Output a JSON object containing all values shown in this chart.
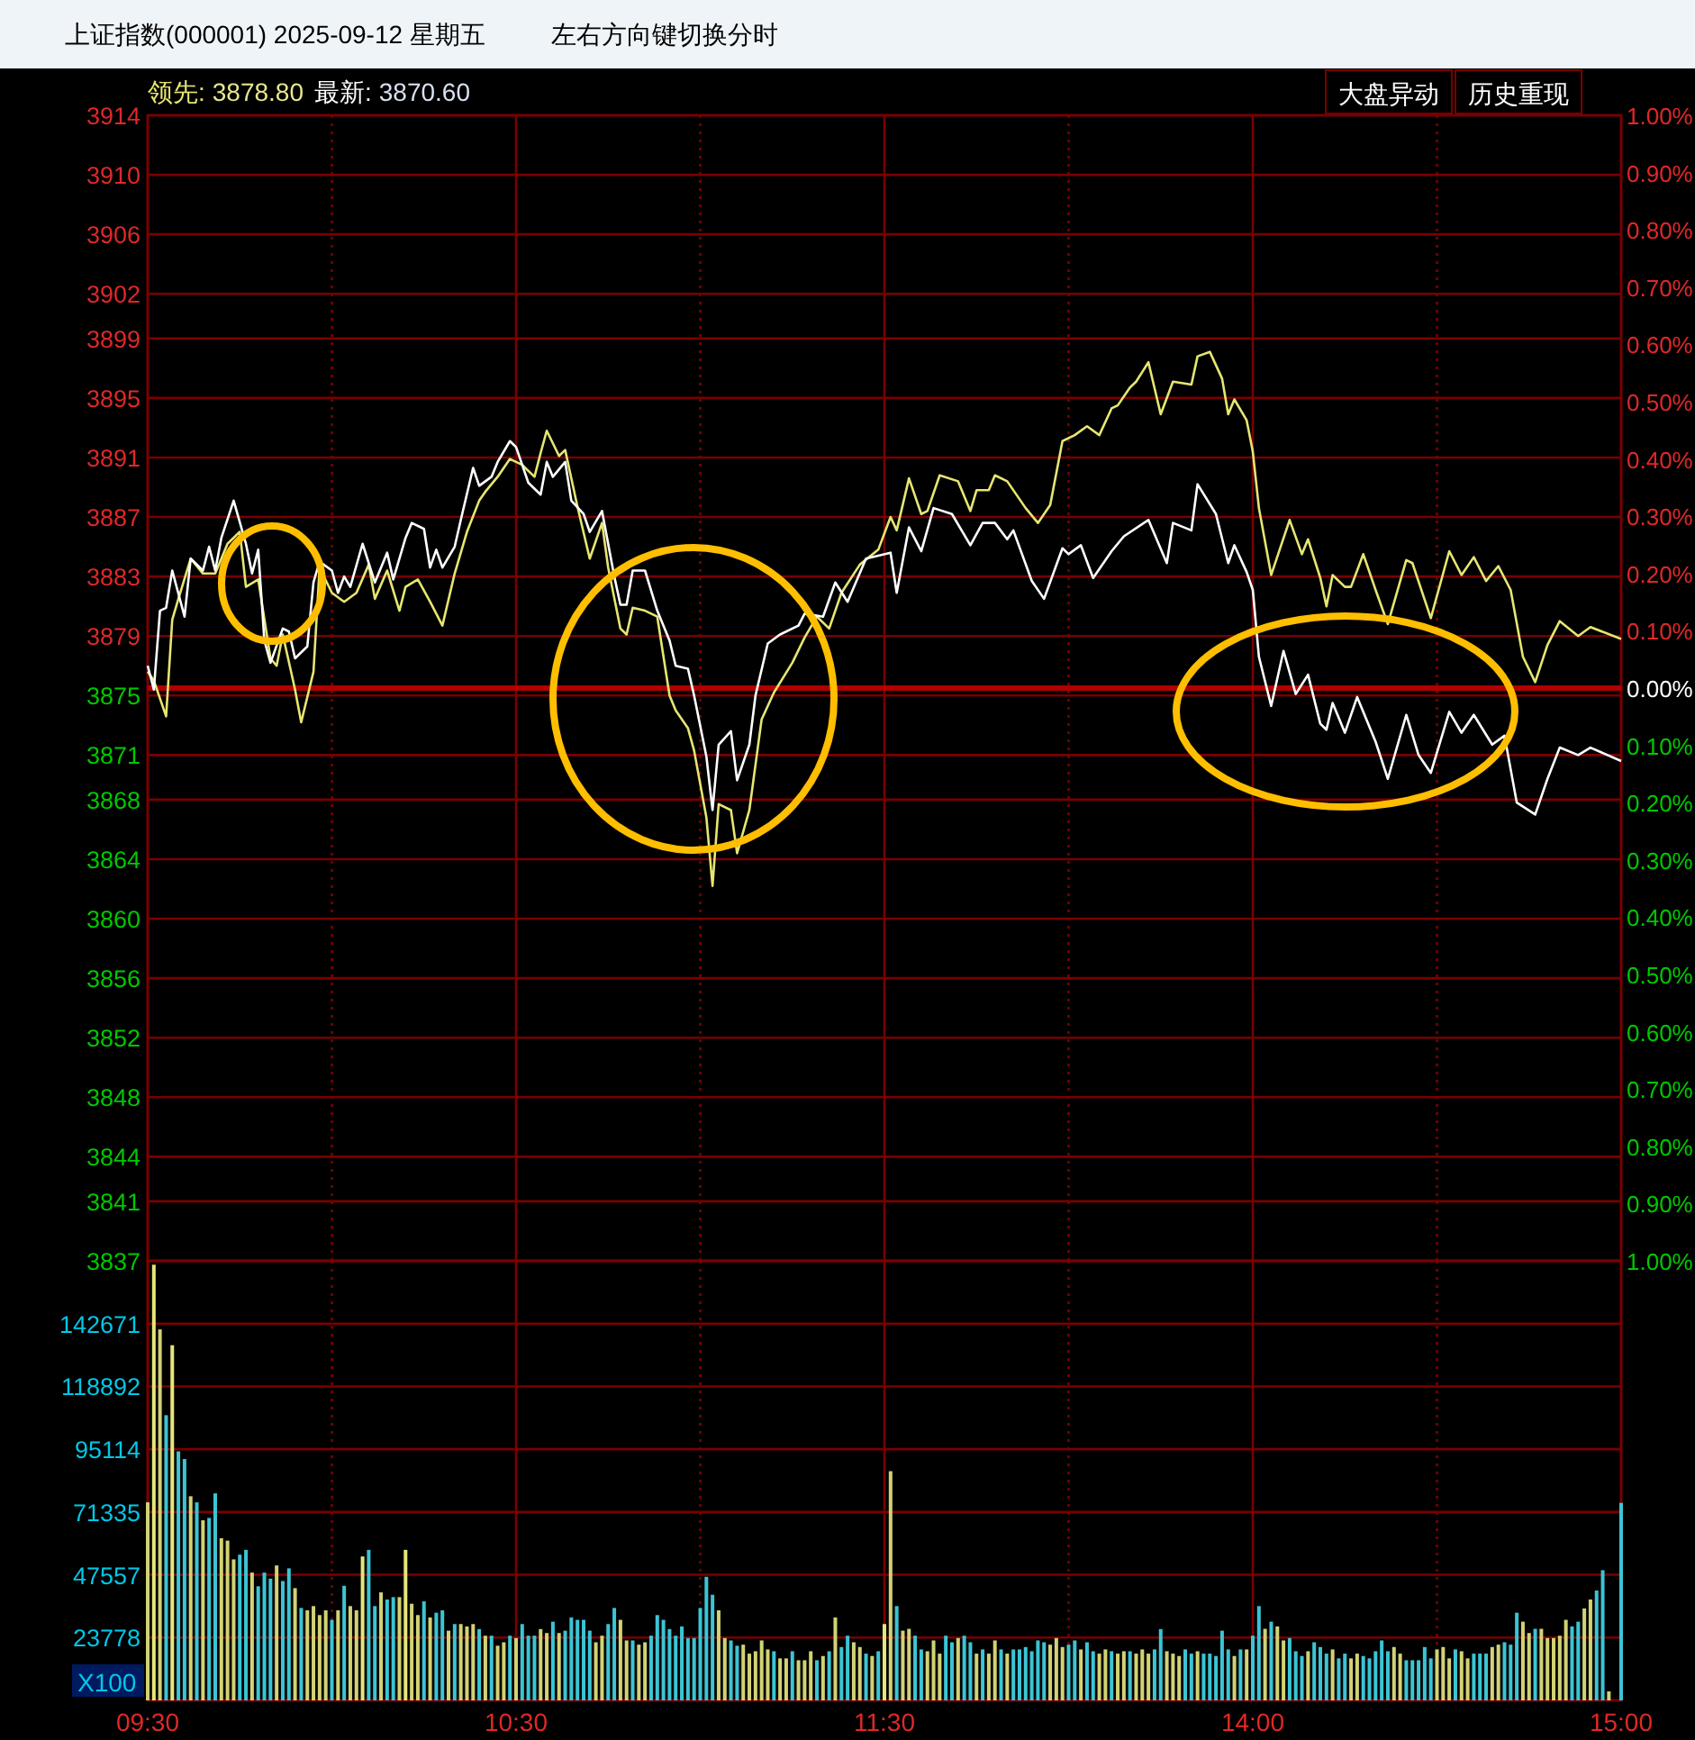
{
  "chart_data": [
    {
      "type": "line",
      "title": "上证指数(000001) 2025-09-12 星期五",
      "subtitle": "左右方向键切换分时",
      "annotations": [
        "3878.80",
        "3870.60",
        "大盘异动",
        "历史重现"
      ],
      "legend": "top left",
      "grid": true,
      "tick_labels": "y",
      "categories": [
        null,
        null,
        null,
        null,
        null,
        null,
        null,
        null,
        null,
        null,
        null,
        null,
        null,
        null,
        null,
        null,
        null,
        null,
        null,
        null,
        null,
        null,
        null,
        null,
        null,
        null,
        null,
        null,
        null,
        null,
        null,
        null,
        null,
        null,
        null,
        null,
        null,
        null,
        null,
        null,
        null,
        null,
        null,
        null,
        null,
        null,
        null,
        null,
        null,
        null,
        null,
        null,
        null,
        null,
        null,
        null,
        null,
        null,
        null,
        null,
        null,
        null,
        null,
        null,
        null,
        null,
        null,
        null,
        null,
        null,
        null,
        null,
        null,
        null,
        null,
        null,
        null,
        null,
        null,
        null,
        null,
        null,
        null,
        null,
        null,
        null,
        null,
        null,
        null,
        null,
        null,
        null,
        null,
        null,
        null,
        null,
        null,
        null,
        null,
        null,
        null,
        null,
        null,
        null,
        null,
        null,
        null,
        null,
        null,
        null,
        null,
        null,
        null,
        null,
        null,
        null,
        null,
        null,
        null,
        null,
        null,
        null,
        null,
        null,
        null,
        null,
        null,
        null,
        null,
        null,
        null,
        null,
        null,
        null,
        null,
        null,
        null,
        null,
        null,
        null,
        null,
        null,
        null,
        null,
        null,
        null,
        null,
        null,
        null,
        null,
        null,
        null,
        null,
        null,
        null,
        null,
        null,
        null,
        null,
        null,
        null,
        null,
        null,
        null,
        null,
        null,
        null,
        null,
        null,
        null,
        null,
        null,
        null,
        null,
        null,
        null,
        null,
        null,
        null,
        null,
        null,
        null,
        null,
        null,
        null,
        null,
        null,
        null,
        null,
        null,
        null,
        null,
        null,
        null,
        null,
        null,
        null,
        null,
        null,
        null,
        null,
        null,
        null,
        null,
        null,
        null,
        null,
        null,
        null,
        null,
        null,
        null,
        null,
        null,
        null,
        null,
        null,
        null,
        null,
        null,
        null,
        null,
        null,
        null,
        null,
        null,
        null,
        null,
        null,
        null,
        null,
        null,
        null,
        null,
        null,
        null,
        null,
        null,
        null,
        null,
        null
      ],
      "ylim": [
        3837,
        3914
      ],
      "yticks": [
        3837,
        3841,
        3844,
        3848,
        3852,
        3856,
        3860,
        3864,
        3868,
        3871,
        3875,
        3879,
        3883,
        3887,
        3891,
        3895,
        3899,
        3902,
        3906,
        3910,
        3914
      ],
      "y2lim": [
        -1,
        1
      ],
      "y2ticks": [
        {
          "value": -1,
          "label": "1.00%"
        },
        {
          "value": -0.9,
          "label": "0.90%"
        },
        {
          "value": -0.8,
          "label": "0.80%"
        },
        {
          "value": -0.7,
          "label": "0.70%"
        },
        {
          "value": -0.6,
          "label": "0.60%"
        },
        {
          "value": -0.5,
          "label": "0.50%"
        },
        {
          "value": -0.4,
          "label": "0.40%"
        },
        {
          "value": -0.3,
          "label": "0.30%"
        },
        {
          "value": -0.2,
          "label": "0.20%"
        },
        {
          "value": -0.1,
          "label": "0.10%"
        },
        {
          "value": 0,
          "label": "0.00%"
        },
        {
          "value": 0.1,
          "label": "0.10%"
        },
        {
          "value": 0.2,
          "label": "0.20%"
        },
        {
          "value": 0.3,
          "label": "0.30%"
        },
        {
          "value": 0.4,
          "label": "0.40%"
        },
        {
          "value": 0.5,
          "label": "0.50%"
        },
        {
          "value": 0.6,
          "label": "0.60%"
        },
        {
          "value": 0.7,
          "label": "0.70%"
        },
        {
          "value": 0.8,
          "label": "0.80%"
        },
        {
          "value": 0.9,
          "label": "0.90%"
        },
        {
          "value": 1,
          "label": "1.00%"
        }
      ],
      "ref_lines": [
        {
          "axis": "y2",
          "value": 0,
          "color": "#b00000"
        }
      ],
      "series": [
        {
          "name": "领先:",
          "color": "#e6e672",
          "values": [
            3876.6,
            3876.0,
            null,
            3873.6,
            3880.1,
            3881.5,
            null,
            3884.2,
            null,
            3883.2,
            null,
            3883.2,
            null,
            3885.2,
            null,
            3886.0,
            3882.3,
            null,
            3882.8,
            null,
            3877.5,
            3877.0,
            3879.1,
            null,
            3875.4,
            3873.2,
            null,
            3876.6,
            3883.6,
            null,
            3881.9,
            null,
            3881.3,
            null,
            3881.9,
            null,
            3883.8,
            3881.5,
            null,
            3883.4,
            null,
            3880.7,
            3882.3,
            null,
            3882.8,
            null,
            3881.3,
            null,
            3879.7,
            null,
            3883.2,
            null,
            3886.0,
            null,
            3888.1,
            3888.7,
            null,
            3889.7,
            null,
            3890.9,
            null,
            3890.5,
            null,
            3889.7,
            3891.3,
            3892.8,
            null,
            3891.1,
            3891.5,
            null,
            3887.7,
            null,
            3884.2,
            null,
            3886.6,
            3883.6,
            null,
            3879.5,
            3879.1,
            3880.9,
            null,
            3880.7,
            null,
            3880.3,
            null,
            3875.0,
            3874.0,
            null,
            3872.8,
            3871.3,
            null,
            3866.8,
            3862.2,
            3867.7,
            null,
            3867.3,
            3864.4,
            null,
            3867.3,
            null,
            3873.4,
            null,
            3875.2,
            null,
            null,
            3877.2,
            null,
            3878.9,
            null,
            3880.3,
            null,
            3879.5,
            null,
            3881.9,
            null,
            null,
            3883.8,
            null,
            null,
            3884.8,
            null,
            3887.0,
            3886.1,
            null,
            3889.6,
            null,
            3887.2,
            3887.4,
            null,
            3889.8,
            null,
            null,
            3889.4,
            null,
            3887.4,
            3888.8,
            null,
            3888.8,
            3889.8,
            null,
            3889.4,
            null,
            null,
            3887.6,
            null,
            3886.6,
            null,
            3887.8,
            null,
            3892.1,
            null,
            3892.5,
            null,
            3893.1,
            null,
            3892.5,
            null,
            3894.3,
            3894.5,
            null,
            3895.7,
            3896.1,
            null,
            3897.4,
            null,
            3893.9,
            null,
            3896.1,
            null,
            null,
            3895.9,
            3897.8,
            null,
            3898.1,
            null,
            3896.3,
            3893.9,
            3894.9,
            null,
            3893.5,
            3891.4,
            3887.6,
            null,
            3883.1,
            null,
            null,
            3886.8,
            null,
            3884.5,
            3885.5,
            null,
            3882.9,
            3881.0,
            3883.1,
            null,
            3882.3,
            3882.3,
            null,
            3884.5,
            null,
            3882.1,
            null,
            3879.8,
            null,
            null,
            3884.1,
            3883.9,
            null,
            null,
            3880.2,
            null,
            null,
            3884.7,
            null,
            3883.1,
            null,
            3884.3,
            null,
            3882.7,
            null,
            3883.7,
            null,
            3882.1,
            null,
            3877.6,
            null,
            3875.9,
            null,
            3878.4,
            null,
            3880.0,
            null,
            null,
            3879.0,
            null,
            3879.6,
            null,
            null,
            null,
            null,
            3878.8
          ]
        },
        {
          "name": "最新:",
          "color": "#ffffff",
          "values": [
            3877.0,
            3875.4,
            3880.7,
            3880.9,
            3883.4,
            null,
            3880.3,
            3884.2,
            null,
            3883.4,
            3885.0,
            3883.4,
            3885.6,
            null,
            3888.1,
            null,
            3885.2,
            3883.2,
            3884.8,
            3878.7,
            3877.2,
            null,
            3879.5,
            3879.3,
            3877.5,
            null,
            3878.3,
            3882.6,
            3884.0,
            null,
            3883.4,
            3881.9,
            3883.0,
            3882.3,
            null,
            3885.2,
            null,
            3882.6,
            null,
            3884.6,
            3882.8,
            null,
            3885.6,
            3886.6,
            null,
            3886.2,
            3883.6,
            3884.8,
            3883.6,
            null,
            3885.0,
            3886.8,
            null,
            3890.3,
            3889.1,
            null,
            3889.7,
            3890.7,
            null,
            3892.1,
            3891.7,
            null,
            3889.3,
            null,
            3888.5,
            3890.7,
            3889.7,
            null,
            3890.7,
            3888.1,
            null,
            3887.2,
            3886.0,
            null,
            3887.4,
            null,
            3883.0,
            3881.1,
            3881.1,
            3883.4,
            null,
            3883.4,
            null,
            3880.7,
            null,
            3878.7,
            3877.0,
            null,
            3876.8,
            3875.0,
            null,
            3870.9,
            3867.3,
            3871.7,
            null,
            3872.6,
            3869.3,
            null,
            3871.7,
            3875.0,
            null,
            3878.5,
            null,
            3879.1,
            null,
            null,
            3879.7,
            3880.5,
            null,
            null,
            3880.3,
            null,
            3882.6,
            null,
            3881.3,
            null,
            null,
            3884.2,
            null,
            null,
            null,
            3884.6,
            3881.9,
            null,
            3886.3,
            null,
            3884.7,
            null,
            3887.6,
            null,
            null,
            3887.2,
            null,
            null,
            3885.1,
            null,
            3886.6,
            null,
            3886.6,
            null,
            3885.5,
            3886.1,
            null,
            null,
            3882.7,
            null,
            3881.5,
            null,
            null,
            3884.9,
            3884.5,
            null,
            3885.1,
            null,
            3882.9,
            null,
            null,
            3884.7,
            null,
            3885.7,
            null,
            null,
            null,
            3886.8,
            null,
            null,
            3883.9,
            3886.6,
            null,
            null,
            3886.1,
            3889.2,
            null,
            null,
            3887.2,
            null,
            3883.9,
            3885.1,
            null,
            3883.3,
            3882.1,
            3877.6,
            null,
            3874.3,
            null,
            3878.0,
            null,
            3875.1,
            null,
            3876.4,
            null,
            3873.1,
            3872.7,
            3874.5,
            null,
            3872.5,
            null,
            3874.9,
            null,
            null,
            3871.9,
            null,
            3869.4,
            null,
            null,
            3873.7,
            null,
            3871.0,
            null,
            3869.8,
            null,
            null,
            3873.9,
            null,
            3872.5,
            null,
            3873.7,
            null,
            null,
            3871.7,
            null,
            3872.3,
            null,
            3867.8,
            null,
            null,
            3867.0,
            null,
            3869.4,
            null,
            3871.5,
            null,
            null,
            3871.0,
            null,
            3871.5,
            null,
            null,
            null,
            null,
            3870.6
          ]
        }
      ]
    },
    {
      "type": "bar",
      "ylabel": "X100",
      "grid": true,
      "categories": [
        "09:30",
        null,
        null,
        null,
        null,
        null,
        null,
        null,
        null,
        null,
        null,
        null,
        null,
        null,
        null,
        null,
        null,
        null,
        null,
        null,
        null,
        null,
        null,
        null,
        null,
        null,
        null,
        null,
        null,
        null,
        null,
        null,
        null,
        null,
        null,
        null,
        null,
        null,
        null,
        null,
        null,
        null,
        null,
        null,
        null,
        null,
        null,
        null,
        null,
        null,
        null,
        null,
        null,
        null,
        null,
        null,
        null,
        null,
        null,
        null,
        "10:30",
        null,
        null,
        null,
        null,
        null,
        null,
        null,
        null,
        null,
        null,
        null,
        null,
        null,
        null,
        null,
        null,
        null,
        null,
        null,
        null,
        null,
        null,
        null,
        null,
        null,
        null,
        null,
        null,
        null,
        null,
        null,
        null,
        null,
        null,
        null,
        null,
        null,
        null,
        null,
        null,
        null,
        null,
        null,
        null,
        null,
        null,
        null,
        null,
        null,
        null,
        null,
        null,
        null,
        null,
        null,
        null,
        null,
        null,
        null,
        "11:30",
        null,
        null,
        null,
        null,
        null,
        null,
        null,
        null,
        null,
        null,
        null,
        null,
        null,
        null,
        null,
        null,
        null,
        null,
        null,
        null,
        null,
        null,
        null,
        null,
        null,
        null,
        null,
        null,
        null,
        null,
        null,
        null,
        null,
        null,
        null,
        null,
        null,
        null,
        null,
        null,
        null,
        null,
        null,
        null,
        null,
        null,
        null,
        null,
        null,
        null,
        null,
        null,
        null,
        null,
        null,
        null,
        null,
        null,
        null,
        "14:00",
        null,
        null,
        null,
        null,
        null,
        null,
        null,
        null,
        null,
        null,
        null,
        null,
        null,
        null,
        null,
        null,
        null,
        null,
        null,
        null,
        null,
        null,
        null,
        null,
        null,
        null,
        null,
        null,
        null,
        null,
        null,
        null,
        null,
        null,
        null,
        null,
        null,
        null,
        null,
        null,
        null,
        null,
        null,
        null,
        null,
        null,
        null,
        null,
        null,
        null,
        null,
        null,
        null,
        null,
        null,
        null,
        null,
        null,
        null,
        "15:00"
      ],
      "ylim": [
        0,
        166449
      ],
      "yticks": [
        {
          "value": 0,
          "label": null
        },
        23778,
        47557,
        71335,
        95114,
        118892,
        142671,
        {
          "value": 166449,
          "label": null
        }
      ],
      "values": [
        75000,
        165000,
        140500,
        108000,
        134500,
        94300,
        91400,
        77300,
        75000,
        68200,
        69100,
        78400,
        61400,
        60500,
        53400,
        55200,
        57000,
        48400,
        43200,
        48400,
        46100,
        51100,
        45200,
        50000,
        42500,
        35000,
        34100,
        35700,
        32300,
        34100,
        30500,
        34100,
        43400,
        35700,
        34100,
        54500,
        57000,
        35700,
        40900,
        38200,
        39100,
        39100,
        57000,
        36600,
        32300,
        37500,
        31400,
        33200,
        34100,
        26400,
        28900,
        28900,
        28000,
        28900,
        27000,
        24500,
        24500,
        20700,
        22000,
        24500,
        23600,
        28900,
        24500,
        24500,
        27000,
        25500,
        29800,
        25500,
        26400,
        31400,
        30500,
        30500,
        26400,
        22000,
        24500,
        28900,
        35000,
        30500,
        22700,
        22700,
        21100,
        22000,
        24500,
        32300,
        30500,
        27000,
        24500,
        28000,
        23600,
        23600,
        35000,
        46800,
        40000,
        34100,
        23600,
        22700,
        20700,
        21100,
        17700,
        18600,
        22700,
        19300,
        18600,
        15900,
        15900,
        18600,
        15200,
        15200,
        18600,
        15200,
        16800,
        18600,
        31400,
        20200,
        24500,
        22000,
        20200,
        17700,
        16800,
        18600,
        28900,
        86800,
        35700,
        26400,
        27100,
        24500,
        19300,
        18600,
        22700,
        17700,
        24500,
        22000,
        23600,
        24500,
        22000,
        17700,
        19300,
        17700,
        22700,
        19300,
        17700,
        19300,
        19300,
        20200,
        18600,
        22700,
        22000,
        21100,
        23600,
        20200,
        21100,
        22700,
        19300,
        22000,
        18600,
        17700,
        19300,
        18600,
        17700,
        18600,
        18600,
        17700,
        19300,
        17700,
        19300,
        27000,
        18600,
        17700,
        16800,
        19300,
        17700,
        18600,
        17700,
        17700,
        16800,
        26400,
        19300,
        16800,
        19300,
        19300,
        24500,
        35700,
        27100,
        29800,
        28000,
        22700,
        23600,
        18600,
        16800,
        18600,
        22000,
        20200,
        17700,
        19300,
        15900,
        17700,
        15900,
        17700,
        16800,
        15900,
        18600,
        22700,
        18600,
        20200,
        17700,
        15200,
        15200,
        15200,
        20200,
        15900,
        19300,
        20200,
        15900,
        19300,
        18600,
        15900,
        17700,
        17700,
        17700,
        20200,
        21100,
        22000,
        21100,
        33200,
        29800,
        25500,
        27100,
        27100,
        23600,
        23600,
        24500,
        30500,
        28000,
        29800,
        34800,
        38200,
        41600,
        49300,
        3400,
        null,
        74800
      ],
      "colors": [
        "#d2d274",
        "#e6e67a",
        "#d2d274",
        "#3cc4d4",
        "#e6e67a",
        "#3cc4d4",
        "#3cc4d4",
        "#d2d274",
        "#3cc4d4",
        "#d2d274",
        "#3cc4d4",
        "#3cc4d4",
        "#d2d274",
        "#d2d274",
        "#d2d274",
        "#3cc4d4",
        "#3cc4d4",
        "#d2d274",
        "#3cc4d4",
        "#3cc4d4",
        "#3cc4d4",
        "#d2d274",
        "#3cc4d4",
        "#3cc4d4",
        "#d2d274",
        "#3cc4d4",
        "#d2d274",
        "#d2d274",
        "#d2d274",
        "#d2d274",
        "#3cc4d4",
        "#d2d274",
        "#3cc4d4",
        "#d2d274",
        "#d2d274",
        "#e6e67a",
        "#3cc4d4",
        "#3cc4d4",
        "#d2d274",
        "#3cc4d4",
        "#3cc4d4",
        "#d2d274",
        "#e6e67a",
        "#d2d274",
        "#d2d274",
        "#3cc4d4",
        "#d2d274",
        "#3cc4d4",
        "#3cc4d4",
        "#d2d274",
        "#3cc4d4",
        "#d2d274",
        "#d2d274",
        "#d2d274",
        "#3cc4d4",
        "#d2d274",
        "#3cc4d4",
        "#d2d274",
        "#d2d274",
        "#3cc4d4",
        "#d2d274",
        "#3cc4d4",
        "#3cc4d4",
        "#3cc4d4",
        "#d2d274",
        "#d2d274",
        "#3cc4d4",
        "#d2d274",
        "#3cc4d4",
        "#3cc4d4",
        "#3cc4d4",
        "#3cc4d4",
        "#3cc4d4",
        "#d2d274",
        "#d2d274",
        "#3cc4d4",
        "#3cc4d4",
        "#d2d274",
        "#d2d274",
        "#3cc4d4",
        "#d2d274",
        "#d2d274",
        "#3cc4d4",
        "#3cc4d4",
        "#3cc4d4",
        "#3cc4d4",
        "#3cc4d4",
        "#3cc4d4",
        "#3cc4d4",
        "#3cc4d4",
        "#3cc4d4",
        "#3cc4d4",
        "#3cc4d4",
        "#d2d274",
        "#d2d274",
        "#3cc4d4",
        "#3cc4d4",
        "#d2d274",
        "#d2d274",
        "#d2d274",
        "#d2d274",
        "#d2d274",
        "#3cc4d4",
        "#d2d274",
        "#d2d274",
        "#3cc4d4",
        "#d2d274",
        "#d2d274",
        "#d2d274",
        "#3cc4d4",
        "#d2d274",
        "#3cc4d4",
        "#d2d274",
        "#3cc4d4",
        "#3cc4d4",
        "#d2d274",
        "#d2d274",
        "#3cc4d4",
        "#d2d274",
        "#3cc4d4",
        "#e6e67a",
        "#d2d274",
        "#3cc4d4",
        "#d2d274",
        "#d2d274",
        "#3cc4d4",
        "#3cc4d4",
        "#d2d274",
        "#d2d274",
        "#d2d274",
        "#3cc4d4",
        "#3cc4d4",
        "#d2d274",
        "#3cc4d4",
        "#3cc4d4",
        "#d2d274",
        "#3cc4d4",
        "#d2d274",
        "#d2d274",
        "#3cc4d4",
        "#d2d274",
        "#3cc4d4",
        "#3cc4d4",
        "#3cc4d4",
        "#3cc4d4",
        "#3cc4d4",
        "#3cc4d4",
        "#d2d274",
        "#d2d274",
        "#d2d274",
        "#3cc4d4",
        "#3cc4d4",
        "#d2d274",
        "#3cc4d4",
        "#3cc4d4",
        "#d2d274",
        "#d2d274",
        "#3cc4d4",
        "#d2d274",
        "#d2d274",
        "#3cc4d4",
        "#d2d274",
        "#d2d274",
        "#d2d274",
        "#3cc4d4",
        "#3cc4d4",
        "#d2d274",
        "#d2d274",
        "#d2d274",
        "#3cc4d4",
        "#3cc4d4",
        "#d2d274",
        "#3cc4d4",
        "#3cc4d4",
        "#3cc4d4",
        "#3cc4d4",
        "#3cc4d4",
        "#d2d274",
        "#3cc4d4",
        "#d2d274",
        "#3cc4d4",
        "#3cc4d4",
        "#d2d274",
        "#3cc4d4",
        "#d2d274",
        "#d2d274",
        "#3cc4d4",
        "#3cc4d4",
        "#3cc4d4",
        "#d2d274",
        "#3cc4d4",
        "#3cc4d4",
        "#3cc4d4",
        "#d2d274",
        "#3cc4d4",
        "#3cc4d4",
        "#d2d274",
        "#d2d274",
        "#3cc4d4",
        "#3cc4d4",
        "#3cc4d4",
        "#3cc4d4",
        "#3cc4d4",
        "#d2d274",
        "#d2d274",
        "#3cc4d4",
        "#3cc4d4",
        "#3cc4d4",
        "#3cc4d4",
        "#3cc4d4",
        "#d2d274",
        "#d2d274",
        "#d2d274",
        "#3cc4d4",
        "#d2d274",
        "#d2d274",
        "#3cc4d4",
        "#3cc4d4",
        "#3cc4d4",
        "#d2d274",
        "#d2d274",
        "#3cc4d4",
        "#3cc4d4",
        "#3cc4d4",
        "#d2d274",
        "#d2d274",
        "#3cc4d4",
        "#d2d274",
        "#d2d274",
        "#d2d274",
        "#d2d274",
        "#d2d274",
        "#3cc4d4",
        "#3cc4d4",
        "#d2d274",
        "#d2d274",
        "#3cc4d4",
        "#3cc4d4",
        "#d2d274",
        null,
        "#3cc4d4"
      ]
    }
  ]
}
